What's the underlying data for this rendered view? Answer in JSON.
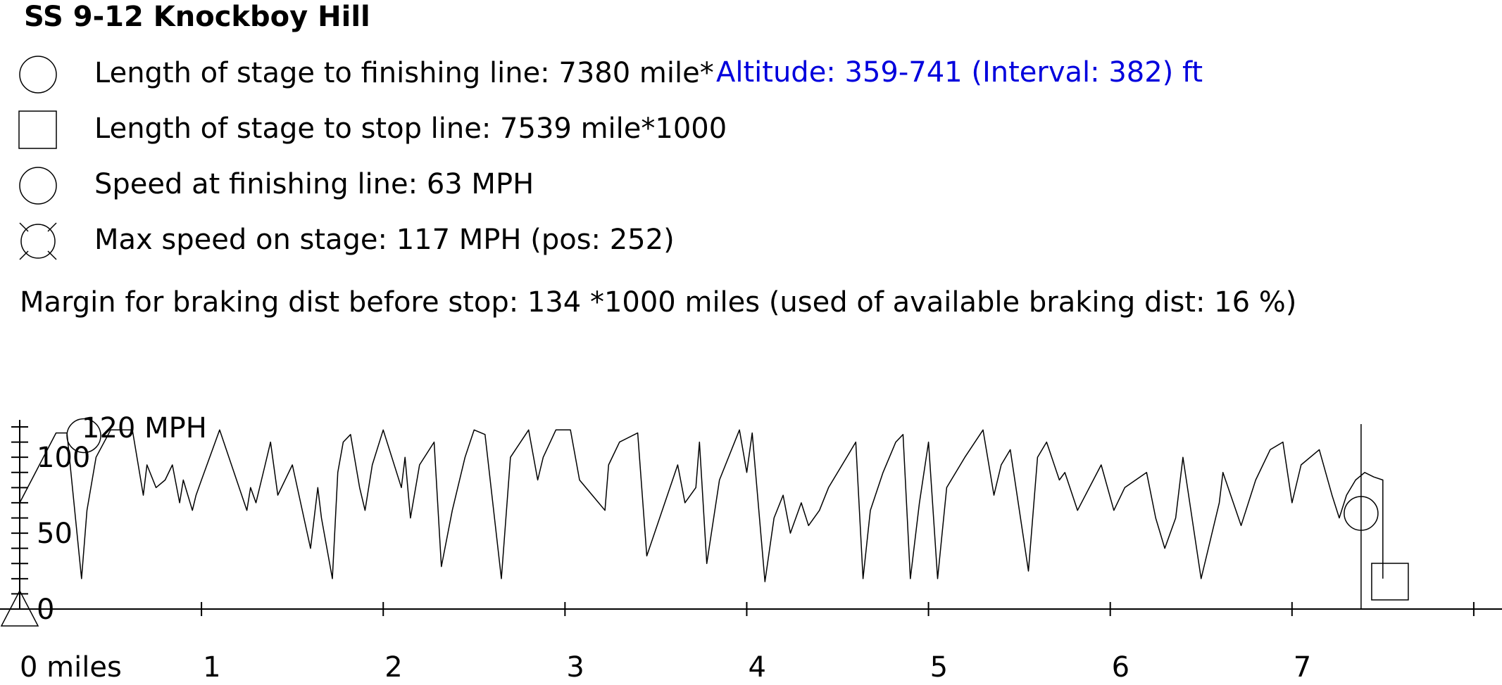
{
  "title": "SS 9-12 Knockboy Hill",
  "legend": [
    {
      "icon": "circle-icon",
      "text": "Length of stage to finishing line: 7380 mile*1000"
    },
    {
      "icon": "square-icon",
      "text": "Length of stage to stop line: 7539 mile*1000"
    },
    {
      "icon": "circle-icon",
      "text": "Speed at finishing line: 63 MPH"
    },
    {
      "icon": "crossed-circle-icon",
      "text": "Max speed on stage: 117 MPH (pos: 252)"
    }
  ],
  "altitude": "Altitude: 359-741 (Interval: 382) ft",
  "margin_text": "Margin for braking dist before stop: 134 *1000 miles (used of available braking dist: 16 %)",
  "chart_data": {
    "type": "line",
    "ylabel_top": "120 MPH",
    "y_tick_labels": [
      "100",
      "50",
      "0"
    ],
    "x_tick_labels": [
      "0 miles",
      "1",
      "2",
      "3",
      "4",
      "5",
      "6",
      "7"
    ],
    "xlim": [
      0,
      8
    ],
    "ylim": [
      0,
      120
    ],
    "series": [
      {
        "x": [
          0,
          0.2,
          0.26,
          0.34,
          0.37,
          0.42,
          0.5,
          0.62,
          0.68,
          0.7,
          0.75,
          0.8,
          0.84,
          0.88,
          0.9,
          0.95,
          0.97,
          1.0,
          1.1,
          1.25,
          1.27,
          1.3,
          1.35,
          1.38,
          1.42,
          1.5,
          1.6,
          1.64,
          1.66,
          1.72,
          1.75,
          1.78,
          1.82,
          1.87,
          1.9,
          1.94,
          2.0,
          2.1,
          2.12,
          2.15,
          2.2,
          2.28,
          2.32,
          2.38,
          2.45,
          2.5,
          2.56,
          2.65,
          2.7,
          2.8,
          2.85,
          2.88,
          2.95,
          3.03,
          3.08,
          3.15,
          3.22,
          3.24,
          3.3,
          3.4,
          3.45,
          3.62,
          3.66,
          3.72,
          3.74,
          3.78,
          3.85,
          3.96,
          4.0,
          4.03,
          4.1,
          4.15,
          4.2,
          4.24,
          4.3,
          4.34,
          4.4,
          4.45,
          4.55,
          4.6,
          4.64,
          4.68,
          4.75,
          4.82,
          4.86,
          4.9,
          4.95,
          5.0,
          5.05,
          5.1,
          5.2,
          5.3,
          5.36,
          5.4,
          5.45,
          5.55,
          5.6,
          5.65,
          5.72,
          5.75,
          5.82,
          5.95,
          6.02,
          6.08,
          6.2,
          6.25,
          6.3,
          6.36,
          6.4,
          6.5,
          6.6,
          6.62,
          6.72,
          6.8,
          6.88,
          6.95,
          7.0,
          7.05,
          7.15,
          7.22,
          7.26,
          7.3,
          7.35,
          7.4,
          7.45,
          7.5,
          7.5
        ],
        "values": [
          70,
          116,
          116,
          20,
          65,
          100,
          118,
          118,
          75,
          95,
          80,
          85,
          95,
          70,
          85,
          65,
          75,
          85,
          118,
          65,
          80,
          70,
          95,
          110,
          75,
          95,
          40,
          80,
          60,
          20,
          90,
          110,
          115,
          80,
          65,
          95,
          118,
          80,
          100,
          60,
          95,
          110,
          28,
          65,
          100,
          118,
          115,
          20,
          100,
          118,
          85,
          100,
          118,
          118,
          85,
          75,
          65,
          95,
          110,
          116,
          35,
          95,
          70,
          80,
          110,
          30,
          85,
          118,
          90,
          116,
          18,
          60,
          75,
          50,
          70,
          55,
          65,
          80,
          100,
          110,
          20,
          65,
          90,
          110,
          115,
          20,
          70,
          110,
          20,
          80,
          100,
          118,
          75,
          95,
          105,
          25,
          100,
          110,
          85,
          90,
          65,
          95,
          65,
          80,
          90,
          60,
          40,
          60,
          100,
          20,
          70,
          90,
          55,
          85,
          105,
          110,
          70,
          95,
          105,
          75,
          60,
          75,
          85,
          90,
          87,
          85,
          20
        ]
      }
    ],
    "markers": [
      {
        "name": "max speed",
        "x": 0.252,
        "y": 117
      },
      {
        "name": "finishing line",
        "x": 7.38,
        "y": 63
      },
      {
        "name": "stop line",
        "x": 7.539,
        "y": 0
      }
    ]
  }
}
